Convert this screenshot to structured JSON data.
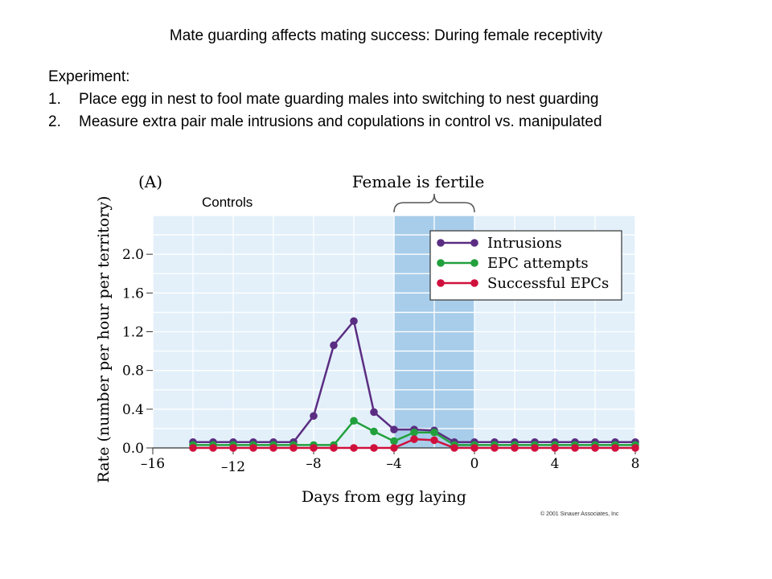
{
  "slide": {
    "title": "Mate guarding affects mating success: During female receptivity",
    "experiment_label": "Experiment:",
    "steps": [
      {
        "num": "1.",
        "text": "Place egg in nest to fool mate guarding males into switching to nest guarding"
      },
      {
        "num": "2.",
        "text": "Measure extra pair male intrusions and copulations in control vs. manipulated"
      }
    ],
    "controls_label": "Controls",
    "copyright": "© 2001 Sinauer Associates, Inc"
  },
  "chart_data": {
    "type": "line",
    "panel_label": "(A)",
    "annotation": "Female is fertile",
    "fertile_window": [
      -4,
      0
    ],
    "xlabel": "Days from egg laying",
    "ylabel": "Rate (number per hour per territory)",
    "xlim": [
      -16,
      8
    ],
    "ylim": [
      0,
      2.4
    ],
    "x_ticks": [
      -16,
      -12,
      -8,
      -4,
      0,
      4,
      8
    ],
    "x_tick_labels": [
      "–16",
      "–12",
      "–8",
      "–4",
      "0",
      "4",
      "8"
    ],
    "y_ticks": [
      0.0,
      0.4,
      0.8,
      1.2,
      1.6,
      2.0
    ],
    "y_tick_labels": [
      "0.0",
      "0.4",
      "0.8",
      "1.2",
      "1.6",
      "2.0"
    ],
    "grid": true,
    "legend_position": "top-right",
    "x": [
      -14,
      -13,
      -12,
      -11,
      -10,
      -9,
      -8,
      -7,
      -6,
      -5,
      -4,
      -3,
      -2,
      -1,
      0,
      1,
      2,
      3,
      4,
      5,
      6,
      7,
      8
    ],
    "series": [
      {
        "name": "Intrusions",
        "color": "#5b2d82",
        "values": [
          0.06,
          0.06,
          0.06,
          0.06,
          0.06,
          0.06,
          0.33,
          1.06,
          1.31,
          0.37,
          0.19,
          0.19,
          0.18,
          0.06,
          0.06,
          0.06,
          0.06,
          0.06,
          0.06,
          0.06,
          0.06,
          0.06,
          0.06
        ]
      },
      {
        "name": "EPC attempts",
        "color": "#22a03c",
        "values": [
          0.03,
          0.03,
          0.03,
          0.03,
          0.03,
          0.03,
          0.03,
          0.03,
          0.28,
          0.17,
          0.07,
          0.16,
          0.16,
          0.03,
          0.03,
          0.03,
          0.03,
          0.03,
          0.03,
          0.03,
          0.03,
          0.03,
          0.03
        ]
      },
      {
        "name": "Successful EPCs",
        "color": "#d0103c",
        "values": [
          0.0,
          0.0,
          0.0,
          0.0,
          0.0,
          0.0,
          0.0,
          0.0,
          0.0,
          0.0,
          0.0,
          0.09,
          0.08,
          0.0,
          0.0,
          0.0,
          0.0,
          0.0,
          0.0,
          0.0,
          0.0,
          0.0,
          0.0
        ]
      }
    ]
  }
}
